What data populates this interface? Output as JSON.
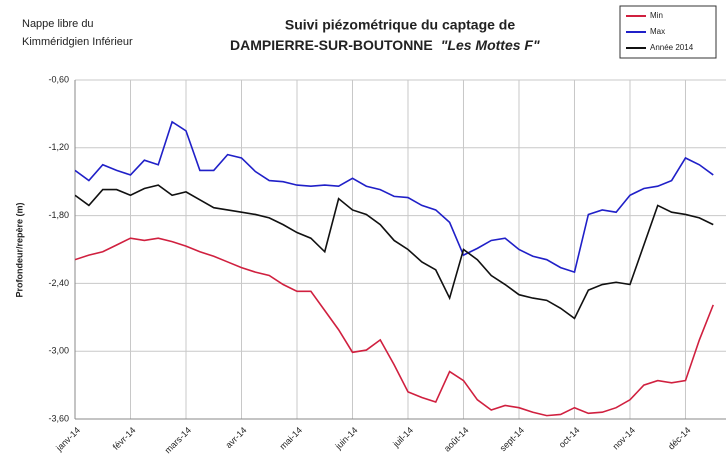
{
  "chart_data": {
    "type": "line",
    "note_lines": [
      "Nappe libre du",
      "Kimméridgien Inférieur"
    ],
    "title_lines": [
      "Suivi piézométrique du captage de",
      "DAMPIERRE-SUR-BOUTONNE"
    ],
    "title_italic": "\"Les Mottes F\"",
    "y_label": "Profondeur/repère (m)",
    "x": [
      0,
      0.25,
      0.5,
      0.75,
      1,
      1.25,
      1.5,
      1.75,
      2,
      2.25,
      2.5,
      2.75,
      3,
      3.25,
      3.5,
      3.75,
      4,
      4.25,
      4.5,
      4.75,
      5,
      5.25,
      5.5,
      5.75,
      6,
      6.25,
      6.5,
      6.75,
      7,
      7.25,
      7.5,
      7.75,
      8,
      8.25,
      8.5,
      8.75,
      9,
      9.25,
      9.5,
      9.75,
      10,
      10.25,
      10.5,
      10.75,
      11,
      11.25,
      11.5
    ],
    "xlim": [
      0,
      11.73
    ],
    "xticks": [
      {
        "value": 0,
        "label": "janv-14"
      },
      {
        "value": 1,
        "label": "févr-14"
      },
      {
        "value": 2,
        "label": "mars-14"
      },
      {
        "value": 3,
        "label": "avr-14"
      },
      {
        "value": 4,
        "label": "mai-14"
      },
      {
        "value": 5,
        "label": "juin-14"
      },
      {
        "value": 6,
        "label": "juil-14"
      },
      {
        "value": 7,
        "label": "août-14"
      },
      {
        "value": 8,
        "label": "sept-14"
      },
      {
        "value": 9,
        "label": "oct-14"
      },
      {
        "value": 10,
        "label": "nov-14"
      },
      {
        "value": 11,
        "label": "déc-14"
      }
    ],
    "ylim": [
      -3.6,
      -0.6
    ],
    "yticks": [
      {
        "value": -0.6,
        "label": "-0,60"
      },
      {
        "value": -1.2,
        "label": "-1,20"
      },
      {
        "value": -1.8,
        "label": "-1,80"
      },
      {
        "value": -2.4,
        "label": "-2,40"
      },
      {
        "value": -3.0,
        "label": "-3,00"
      },
      {
        "value": -3.6,
        "label": "-3,60"
      }
    ],
    "grid": true,
    "legend": "upper right",
    "series": [
      {
        "name": "Min",
        "color": "#d0203f",
        "values": [
          -2.19,
          -2.15,
          -2.12,
          -2.06,
          -2.0,
          -2.02,
          -2.0,
          -2.03,
          -2.07,
          -2.12,
          -2.16,
          -2.21,
          -2.26,
          -2.3,
          -2.33,
          -2.41,
          -2.47,
          -2.47,
          -2.64,
          -2.81,
          -3.01,
          -2.99,
          -2.9,
          -3.12,
          -3.36,
          -3.41,
          -3.45,
          -3.18,
          -3.26,
          -3.43,
          -3.52,
          -3.48,
          -3.5,
          -3.54,
          -3.57,
          -3.56,
          -3.5,
          -3.55,
          -3.54,
          -3.5,
          -3.43,
          -3.3,
          -3.26,
          -3.28,
          -3.26,
          -2.9,
          -2.59
        ]
      },
      {
        "name": "Max",
        "color": "#2020c8",
        "values": [
          -1.4,
          -1.49,
          -1.35,
          -1.4,
          -1.44,
          -1.31,
          -1.35,
          -0.97,
          -1.05,
          -1.4,
          -1.4,
          -1.26,
          -1.29,
          -1.41,
          -1.49,
          -1.5,
          -1.53,
          -1.54,
          -1.53,
          -1.54,
          -1.47,
          -1.54,
          -1.57,
          -1.63,
          -1.64,
          -1.71,
          -1.75,
          -1.86,
          -2.15,
          -2.09,
          -2.02,
          -2.0,
          -2.1,
          -2.16,
          -2.19,
          -2.26,
          -2.3,
          -1.79,
          -1.75,
          -1.77,
          -1.62,
          -1.56,
          -1.54,
          -1.49,
          -1.29,
          -1.35,
          -1.44
        ]
      },
      {
        "name": "Année 2014",
        "color": "#111111",
        "values": [
          -1.62,
          -1.71,
          -1.57,
          -1.57,
          -1.62,
          -1.56,
          -1.53,
          -1.62,
          -1.59,
          -1.66,
          -1.73,
          -1.75,
          -1.77,
          -1.79,
          -1.82,
          -1.88,
          -1.95,
          -2.0,
          -2.12,
          -1.65,
          -1.75,
          -1.79,
          -1.88,
          -2.02,
          -2.1,
          -2.21,
          -2.28,
          -2.53,
          -2.1,
          -2.19,
          -2.33,
          -2.41,
          -2.5,
          -2.53,
          -2.55,
          -2.62,
          -2.71,
          -2.46,
          -2.41,
          -2.39,
          -2.41,
          -2.06,
          -1.71,
          -1.77,
          -1.79,
          -1.82,
          -1.88
        ]
      }
    ]
  }
}
